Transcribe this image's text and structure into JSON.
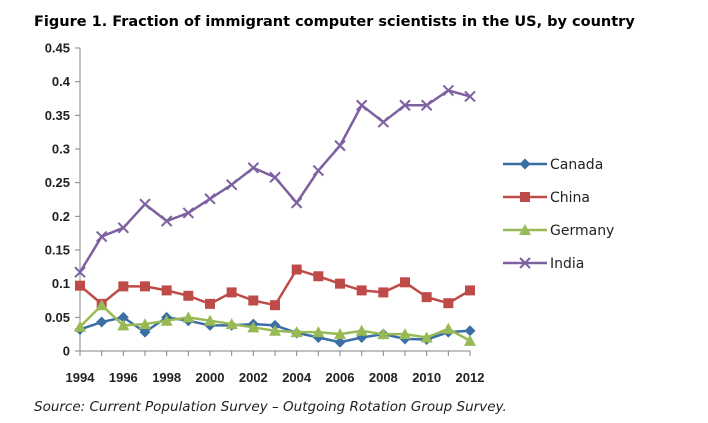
{
  "figure": {
    "title": "Figure 1. Fraction of immigrant computer scientists in the US, by country",
    "source": "Source: Current Population Survey – Outgoing Rotation Group Survey."
  },
  "chart_data": {
    "type": "line",
    "title": "Figure 1. Fraction of immigrant computer scientists in the US, by country",
    "xlabel": "",
    "ylabel": "",
    "x": [
      1994,
      1995,
      1996,
      1997,
      1998,
      1999,
      2000,
      2001,
      2002,
      2003,
      2004,
      2005,
      2006,
      2007,
      2008,
      2009,
      2010,
      2011,
      2012
    ],
    "x_ticks": [
      "1994",
      "1996",
      "1998",
      "2000",
      "2002",
      "2004",
      "2006",
      "2008",
      "2010",
      "2012"
    ],
    "y_ticks": [
      "0",
      "0.05",
      "0.1",
      "0.15",
      "0.2",
      "0.25",
      "0.3",
      "0.35",
      "0.4",
      "0.45"
    ],
    "ylim": [
      0,
      0.45
    ],
    "grid": false,
    "legend_position": "right",
    "series": [
      {
        "name": "Canada",
        "color": "#3a6ea5",
        "marker": "diamond",
        "values": [
          0.032,
          0.043,
          0.05,
          0.028,
          0.05,
          0.045,
          0.038,
          0.038,
          0.04,
          0.038,
          0.027,
          0.02,
          0.013,
          0.02,
          0.025,
          0.018,
          0.017,
          0.028,
          0.03
        ]
      },
      {
        "name": "China",
        "color": "#be4b48",
        "marker": "square",
        "values": [
          0.097,
          0.07,
          0.096,
          0.096,
          0.09,
          0.082,
          0.07,
          0.087,
          0.075,
          0.068,
          0.121,
          0.111,
          0.1,
          0.09,
          0.087,
          0.102,
          0.08,
          0.071,
          0.09
        ]
      },
      {
        "name": "Germany",
        "color": "#98b954",
        "marker": "triangle",
        "values": [
          0.036,
          0.068,
          0.038,
          0.04,
          0.045,
          0.05,
          0.045,
          0.04,
          0.035,
          0.03,
          0.028,
          0.028,
          0.025,
          0.03,
          0.025,
          0.025,
          0.02,
          0.033,
          0.015
        ]
      },
      {
        "name": "India",
        "color": "#7d60a0",
        "marker": "x",
        "values": [
          0.117,
          0.17,
          0.183,
          0.218,
          0.193,
          0.205,
          0.226,
          0.247,
          0.272,
          0.258,
          0.22,
          0.268,
          0.305,
          0.365,
          0.34,
          0.365,
          0.365,
          0.387,
          0.378
        ]
      }
    ]
  }
}
